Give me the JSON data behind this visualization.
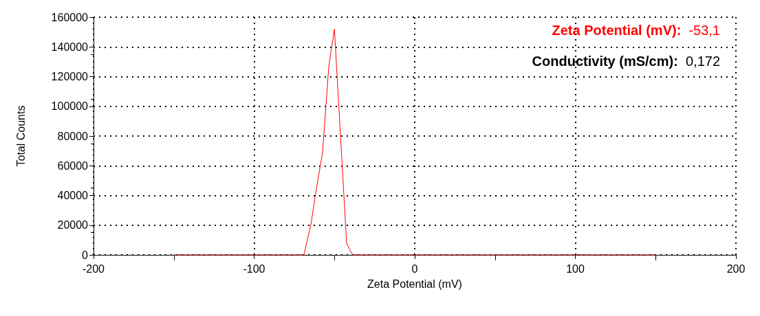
{
  "chart_data": {
    "type": "line",
    "xlabel": "Zeta Potential (mV)",
    "ylabel": "Total Counts",
    "annotations": [
      "Zeta Potential (mV):  -53,1",
      "Conductivity (mS/cm):  0,172"
    ],
    "series": [
      {
        "color": "#ff0000",
        "x": [
          -150,
          -69,
          -64.7,
          -60.9,
          -57.4,
          -53.5,
          -50,
          -42.4,
          -38.7,
          150
        ],
        "values": [
          0,
          0,
          20200,
          46700,
          68800,
          127000,
          152000,
          7600,
          0,
          0
        ]
      }
    ],
    "xlim": [
      -200,
      200
    ],
    "xticks": [
      -200,
      -100,
      0,
      100,
      200
    ],
    "ylim": [
      0,
      160000
    ],
    "yticks": [
      0,
      20000,
      40000,
      60000,
      80000,
      100000,
      120000,
      140000,
      160000
    ],
    "grid": true,
    "marker": "none",
    "line_style": "solid"
  }
}
